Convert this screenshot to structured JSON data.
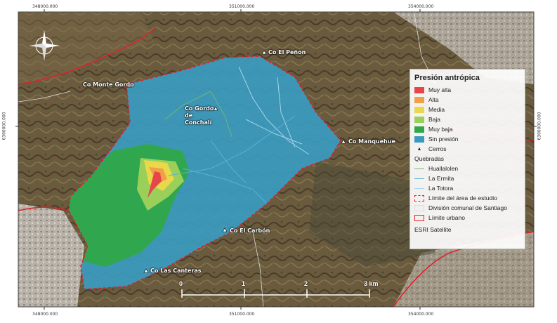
{
  "coords": {
    "top": [
      "348000.000",
      "351000.000",
      "354000.000"
    ],
    "bottom": [
      "348000.000",
      "351000.000",
      "354000.000"
    ],
    "left": "6300000.000",
    "right": "6300000.000"
  },
  "peaks": [
    "Co El Peñon",
    "Co Monte Gordo",
    "Co Gordo de Conchalí",
    "Co Manquehue",
    "Co El Carbón",
    "Co Las Canteras"
  ],
  "legend": {
    "title": "Presión antrópica",
    "classes": [
      {
        "label": "Muy alta",
        "color": "#e8454a"
      },
      {
        "label": "Alta",
        "color": "#f0a048"
      },
      {
        "label": "Media",
        "color": "#e8d84a"
      },
      {
        "label": "Baja",
        "color": "#9ad05a"
      },
      {
        "label": "Muy baja",
        "color": "#2fa84a"
      },
      {
        "label": "Sin presión",
        "color": "#3a9bbf"
      }
    ],
    "cerros_label": "Cerros",
    "quebradas_title": "Quebradas",
    "quebradas": [
      {
        "label": "Huallalolen",
        "color": "#6ab87a"
      },
      {
        "label": "La Ermita",
        "color": "#5ab0d8"
      },
      {
        "label": "La Totora",
        "color": "#a8d4ee"
      }
    ],
    "boundaries": [
      {
        "label": "Límite del área de estudio",
        "style": "dashed",
        "color": "#e0202a"
      },
      {
        "label": "División comunal de Santiago",
        "style": "fill",
        "color": "#f0f0f0"
      },
      {
        "label": "Límite urbano",
        "style": "outline",
        "color": "#e0202a"
      }
    ],
    "source": "ESRI Satellite"
  },
  "scale": {
    "labels": [
      "0",
      "1",
      "2",
      "3 km"
    ]
  },
  "compass_icon": "north-arrow-icon"
}
